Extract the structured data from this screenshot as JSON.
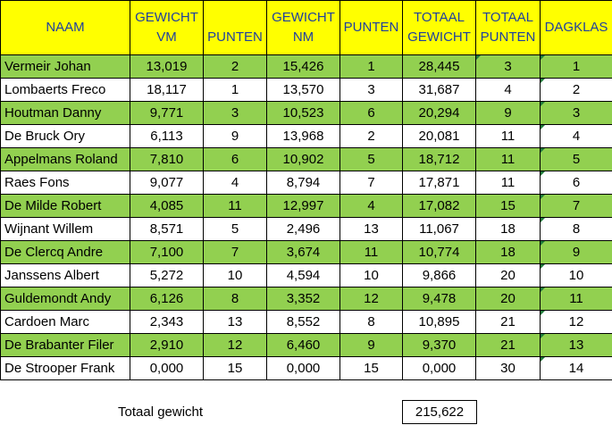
{
  "headers": {
    "naam": "NAAM",
    "gewicht_vm": [
      "GEWICHT",
      "VM"
    ],
    "punten_vm": "PUNTEN",
    "gewicht_nm": [
      "GEWICHT",
      "NM"
    ],
    "punten_nm": "PUNTEN",
    "totaal_gewicht": [
      "TOTAAL",
      "GEWICHT"
    ],
    "totaal_punten": [
      "TOTAAL",
      "PUNTEN"
    ],
    "dagklas": "DAGKLAS"
  },
  "rows": [
    {
      "naam": "Vermeir Johan",
      "gewicht_vm": "13,019",
      "punten_vm": "2",
      "gewicht_nm": "15,426",
      "punten_nm": "1",
      "totaal_gewicht": "28,445",
      "totaal_punten": "3",
      "dagklas": "1"
    },
    {
      "naam": "Lombaerts Freco",
      "gewicht_vm": "18,117",
      "punten_vm": "1",
      "gewicht_nm": "13,570",
      "punten_nm": "3",
      "totaal_gewicht": "31,687",
      "totaal_punten": "4",
      "dagklas": "2"
    },
    {
      "naam": "Houtman Danny",
      "gewicht_vm": "9,771",
      "punten_vm": "3",
      "gewicht_nm": "10,523",
      "punten_nm": "6",
      "totaal_gewicht": "20,294",
      "totaal_punten": "9",
      "dagklas": "3"
    },
    {
      "naam": "De Bruck Ory",
      "gewicht_vm": "6,113",
      "punten_vm": "9",
      "gewicht_nm": "13,968",
      "punten_nm": "2",
      "totaal_gewicht": "20,081",
      "totaal_punten": "11",
      "dagklas": "4"
    },
    {
      "naam": "Appelmans Roland",
      "gewicht_vm": "7,810",
      "punten_vm": "6",
      "gewicht_nm": "10,902",
      "punten_nm": "5",
      "totaal_gewicht": "18,712",
      "totaal_punten": "11",
      "dagklas": "5"
    },
    {
      "naam": "Raes Fons",
      "gewicht_vm": "9,077",
      "punten_vm": "4",
      "gewicht_nm": "8,794",
      "punten_nm": "7",
      "totaal_gewicht": "17,871",
      "totaal_punten": "11",
      "dagklas": "6"
    },
    {
      "naam": "De Milde Robert",
      "gewicht_vm": "4,085",
      "punten_vm": "11",
      "gewicht_nm": "12,997",
      "punten_nm": "4",
      "totaal_gewicht": "17,082",
      "totaal_punten": "15",
      "dagklas": "7"
    },
    {
      "naam": "Wijnant Willem",
      "gewicht_vm": "8,571",
      "punten_vm": "5",
      "gewicht_nm": "2,496",
      "punten_nm": "13",
      "totaal_gewicht": "11,067",
      "totaal_punten": "18",
      "dagklas": "8"
    },
    {
      "naam": "De Clercq Andre",
      "gewicht_vm": "7,100",
      "punten_vm": "7",
      "gewicht_nm": "3,674",
      "punten_nm": "11",
      "totaal_gewicht": "10,774",
      "totaal_punten": "18",
      "dagklas": "9"
    },
    {
      "naam": "Janssens Albert",
      "gewicht_vm": "5,272",
      "punten_vm": "10",
      "gewicht_nm": "4,594",
      "punten_nm": "10",
      "totaal_gewicht": "9,866",
      "totaal_punten": "20",
      "dagklas": "10"
    },
    {
      "naam": "Guldemondt Andy",
      "gewicht_vm": "6,126",
      "punten_vm": "8",
      "gewicht_nm": "3,352",
      "punten_nm": "12",
      "totaal_gewicht": "9,478",
      "totaal_punten": "20",
      "dagklas": "11"
    },
    {
      "naam": "Cardoen Marc",
      "gewicht_vm": "2,343",
      "punten_vm": "13",
      "gewicht_nm": "8,552",
      "punten_nm": "8",
      "totaal_gewicht": "10,895",
      "totaal_punten": "21",
      "dagklas": "12"
    },
    {
      "naam": "De Brabanter Filer",
      "gewicht_vm": "2,910",
      "punten_vm": "12",
      "gewicht_nm": "6,460",
      "punten_nm": "9",
      "totaal_gewicht": "9,370",
      "totaal_punten": "21",
      "dagklas": "13"
    },
    {
      "naam": "De Strooper Frank",
      "gewicht_vm": "0,000",
      "punten_vm": "15",
      "gewicht_nm": "0,000",
      "punten_nm": "15",
      "totaal_gewicht": "0,000",
      "totaal_punten": "30",
      "dagklas": "14"
    }
  ],
  "footer": {
    "totaal_label": "Totaal gewicht",
    "totaal_value": "215,622"
  },
  "colors": {
    "header_bg": "#ffff00",
    "header_text": "#1f3f9f",
    "row_green": "#92d050",
    "row_white": "#ffffff"
  }
}
